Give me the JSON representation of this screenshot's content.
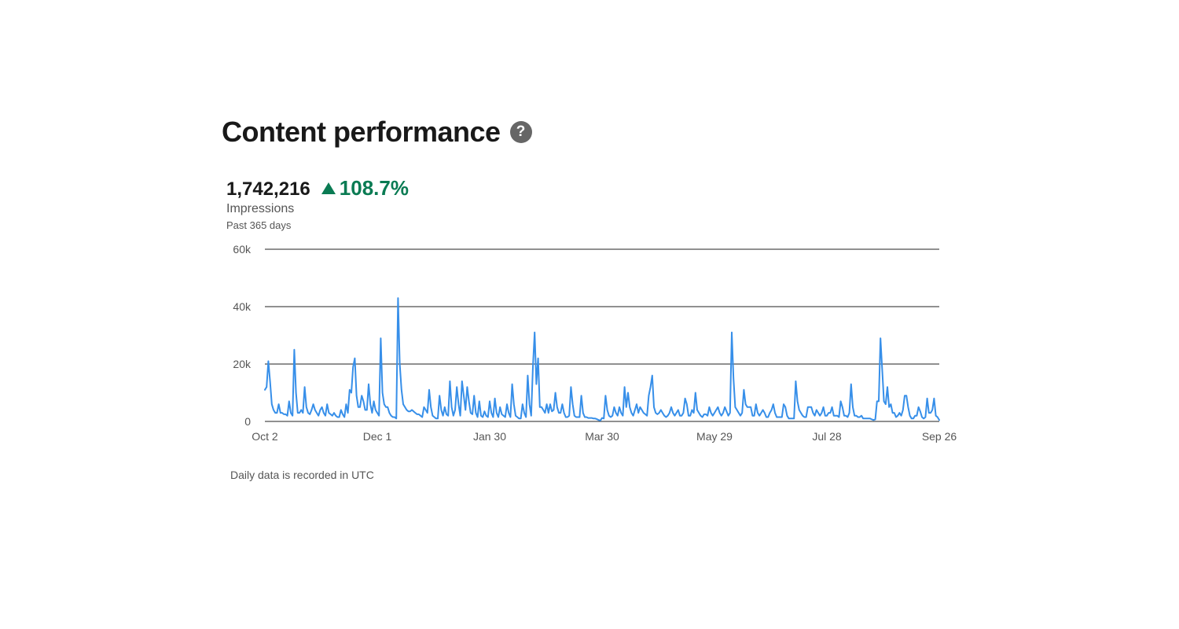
{
  "header": {
    "title": "Content performance",
    "help_icon": "question-circle-icon",
    "help_glyph": "?"
  },
  "metric": {
    "value": "1,742,216",
    "delta_icon": "triangle-up-icon",
    "delta": "108.7%",
    "label": "Impressions",
    "period": "Past 365 days"
  },
  "colors": {
    "line": "#378fe9",
    "positive": "#0a7b53",
    "grid": "#222222",
    "text_muted": "#555555"
  },
  "footnote": "Daily data is recorded in UTC",
  "chart_data": {
    "type": "line",
    "title": "",
    "xlabel": "",
    "ylabel": "",
    "ylim": [
      0,
      60000
    ],
    "yticks": [
      0,
      20000,
      40000,
      60000
    ],
    "ytick_labels": [
      "0",
      "20k",
      "40k",
      "60k"
    ],
    "xtick_labels": [
      "Oct 2",
      "Dec 1",
      "Jan 30",
      "Mar 30",
      "May 29",
      "Jul 28",
      "Sep 26"
    ],
    "grid": true,
    "series": [
      {
        "name": "",
        "values": [
          11000,
          12000,
          21000,
          14000,
          6000,
          4000,
          3000,
          3000,
          6000,
          3000,
          3000,
          2500,
          2500,
          2000,
          7000,
          3000,
          2000,
          25000,
          10000,
          3000,
          3000,
          4000,
          3000,
          12000,
          5000,
          3000,
          2500,
          4000,
          6000,
          4000,
          3000,
          2000,
          4000,
          5000,
          3000,
          2000,
          6000,
          3000,
          2500,
          2000,
          3000,
          2000,
          1500,
          1500,
          4000,
          2500,
          1500,
          6000,
          3000,
          11000,
          10000,
          19000,
          22000,
          9000,
          5000,
          5000,
          9000,
          7000,
          4000,
          4000,
          13000,
          6000,
          3000,
          7000,
          4000,
          3000,
          2000,
          29000,
          10000,
          6000,
          5000,
          5000,
          3000,
          2000,
          1500,
          1500,
          1000,
          43000,
          20000,
          11000,
          6000,
          5000,
          4000,
          3500,
          3500,
          4000,
          3500,
          3000,
          2500,
          2500,
          2000,
          1500,
          5000,
          4000,
          3000,
          11000,
          5000,
          2000,
          1500,
          1000,
          1000,
          9000,
          4000,
          2000,
          5000,
          2500,
          2000,
          14000,
          5000,
          2000,
          4000,
          12000,
          6000,
          2000,
          14000,
          9000,
          4000,
          12000,
          7000,
          3000,
          2500,
          9000,
          3000,
          1500,
          7000,
          2000,
          1500,
          3500,
          2000,
          1500,
          7000,
          3000,
          1500,
          8000,
          3000,
          1500,
          5000,
          2500,
          2000,
          1500,
          6000,
          3000,
          1500,
          13000,
          6000,
          2000,
          1500,
          1000,
          1000,
          6000,
          3000,
          1500,
          16000,
          6000,
          2000,
          19000,
          31000,
          13000,
          22000,
          5000,
          5000,
          4000,
          3000,
          6000,
          3000,
          6000,
          3500,
          4000,
          10000,
          5000,
          3000,
          3000,
          6000,
          3000,
          1500,
          1500,
          2000,
          12000,
          6000,
          2000,
          1500,
          1500,
          1500,
          9000,
          3000,
          1500,
          1500,
          1200,
          1200,
          1200,
          1000,
          1000,
          800,
          500,
          300,
          1200,
          1000,
          9000,
          4000,
          2000,
          1500,
          2000,
          5000,
          3000,
          2000,
          5000,
          3000,
          2000,
          12000,
          5000,
          10000,
          5000,
          3000,
          2000,
          4000,
          6000,
          3000,
          5000,
          4000,
          3000,
          2500,
          2000,
          9000,
          12000,
          16000,
          5000,
          3000,
          2500,
          3000,
          4000,
          3000,
          2000,
          1500,
          2000,
          3000,
          5000,
          3000,
          2000,
          3000,
          4000,
          2000,
          2000,
          3000,
          8000,
          6000,
          2000,
          2000,
          4000,
          3000,
          10000,
          4000,
          3000,
          2000,
          1500,
          2500,
          2500,
          2000,
          5000,
          3000,
          2000,
          3000,
          4000,
          5000,
          3000,
          2000,
          3000,
          5000,
          3500,
          2000,
          3000,
          31000,
          15000,
          5000,
          4000,
          3000,
          2000,
          3000,
          11000,
          6000,
          5000,
          5000,
          5000,
          2000,
          2000,
          6000,
          3000,
          2000,
          3000,
          4000,
          3000,
          1500,
          1500,
          3000,
          4000,
          6000,
          3000,
          1500,
          1500,
          1500,
          1500,
          6000,
          5000,
          2000,
          1000,
          1000,
          1000,
          1000,
          14000,
          7000,
          4000,
          3000,
          2000,
          1500,
          1500,
          5000,
          5000,
          5000,
          3000,
          2000,
          4000,
          3000,
          2000,
          3000,
          5000,
          2000,
          2000,
          3000,
          3000,
          5000,
          2000,
          2000,
          2000,
          1500,
          7000,
          5000,
          2000,
          2000,
          1500,
          3000,
          13000,
          5000,
          2000,
          2000,
          1500,
          1500,
          2000,
          1000,
          1000,
          1000,
          1000,
          1000,
          700,
          500,
          700,
          7000,
          7000,
          29000,
          18000,
          7000,
          6000,
          12000,
          5000,
          6000,
          3000,
          3000,
          1500,
          2000,
          3000,
          2000,
          4000,
          9000,
          9000,
          5000,
          2000,
          1000,
          1000,
          2000,
          2000,
          5000,
          3500,
          1500,
          1000,
          1500,
          8000,
          3000,
          3000,
          4000,
          8000,
          2000,
          1500,
          500
        ]
      }
    ]
  }
}
